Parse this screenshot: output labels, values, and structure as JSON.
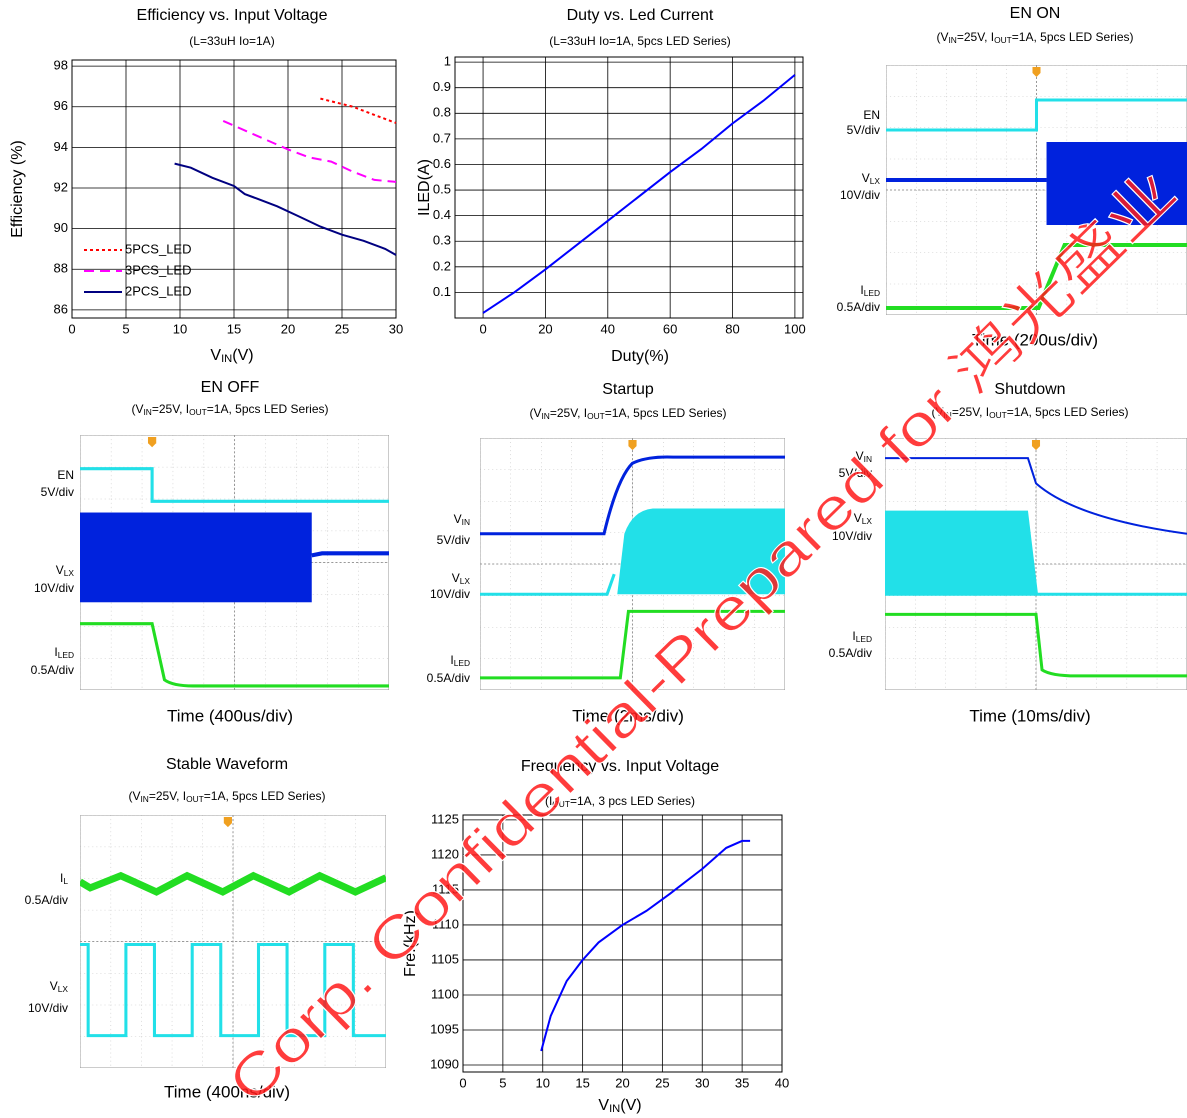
{
  "chart_data": [
    {
      "type": "line",
      "title": "Efficiency vs. Input Voltage",
      "subtitle": [
        "(L=33uH Io=1A)"
      ],
      "xlabel": [
        "V",
        "IN",
        "(V)"
      ],
      "ylabel": "Efficiency (%)",
      "xlim": [
        0,
        30
      ],
      "ylim": [
        85.6,
        98.3
      ],
      "xticks": [
        0,
        5,
        10,
        15,
        20,
        25,
        30
      ],
      "yticks": [
        86,
        88,
        90,
        92,
        94,
        96,
        98
      ],
      "grid": true,
      "legend": "lower left",
      "series": [
        {
          "name": "5PCS_LED",
          "color": "#ff0000",
          "linestyle": "dotted",
          "x": [
            23,
            26,
            28,
            30
          ],
          "values": [
            96.4,
            96.0,
            95.6,
            95.2
          ]
        },
        {
          "name": "3PCS_LED",
          "color": "#ff00ff",
          "linestyle": "dashed",
          "x": [
            14,
            17,
            20,
            22,
            24,
            26,
            28,
            30
          ],
          "values": [
            95.3,
            94.6,
            93.9,
            93.5,
            93.3,
            92.8,
            92.4,
            92.3
          ]
        },
        {
          "name": "2PCS_LED",
          "color": "#000080",
          "linestyle": "solid",
          "x": [
            9.5,
            11,
            13,
            15,
            16,
            17,
            19,
            21,
            23,
            25,
            27,
            29,
            30
          ],
          "values": [
            93.2,
            93.0,
            92.5,
            92.1,
            91.7,
            91.5,
            91.1,
            90.6,
            90.1,
            89.7,
            89.4,
            89.0,
            88.7
          ]
        }
      ]
    },
    {
      "type": "line",
      "title": "Duty vs. Led Current",
      "subtitle": [
        "(L=33uH Io=1A, 5pcs LED Series)"
      ],
      "xlabel": [
        "Duty(%)"
      ],
      "ylabel": "ILED(A)",
      "xlim": [
        -9,
        102.6
      ],
      "ylim": [
        0,
        1.02
      ],
      "xticks": [
        0,
        20,
        40,
        60,
        80,
        100
      ],
      "yticks": [
        0.1,
        0.2,
        0.3,
        0.4,
        0.5,
        0.6,
        0.7,
        0.8,
        0.9,
        1
      ],
      "grid": true,
      "series": [
        {
          "name": null,
          "color": "#0000ff",
          "linestyle": "solid",
          "x": [
            0,
            10,
            20,
            40,
            60,
            70,
            80,
            90,
            100
          ],
          "values": [
            0.02,
            0.1,
            0.19,
            0.38,
            0.57,
            0.66,
            0.76,
            0.85,
            0.95
          ]
        }
      ]
    },
    {
      "type": "scope",
      "title": "EN ON",
      "subtitle": [
        "(V",
        "IN",
        "=25V, I",
        "OUT",
        "=1A, 5pcs LED Series)"
      ],
      "xlabel": "Time (200us/div)",
      "channels": [
        {
          "name": [
            "EN"
          ],
          "scale": "5V/div"
        },
        {
          "name": [
            "V",
            "LX"
          ],
          "scale": "10V/div"
        },
        {
          "name": [
            "I",
            "LED"
          ],
          "scale": "0.5A/div"
        }
      ]
    },
    {
      "type": "scope",
      "title": "EN OFF",
      "subtitle": [
        "(V",
        "IN",
        "=25V, I",
        "OUT",
        "=1A, 5pcs LED Series)"
      ],
      "xlabel": "Time (400us/div)",
      "channels": [
        {
          "name": [
            "EN"
          ],
          "scale": "5V/div"
        },
        {
          "name": [
            "V",
            "LX"
          ],
          "scale": "10V/div"
        },
        {
          "name": [
            "I",
            "LED"
          ],
          "scale": "0.5A/div"
        }
      ]
    },
    {
      "type": "scope",
      "title": "Startup",
      "subtitle": [
        "(V",
        "IN",
        "=25V, I",
        "OUT",
        "=1A, 5pcs LED Series)"
      ],
      "xlabel": "Time (2ms/div)",
      "channels": [
        {
          "name": [
            "V",
            "IN"
          ],
          "scale": "5V/div"
        },
        {
          "name": [
            "V",
            "LX"
          ],
          "scale": "10V/div"
        },
        {
          "name": [
            "I",
            "LED"
          ],
          "scale": "0.5A/div"
        }
      ]
    },
    {
      "type": "scope",
      "title": "Shutdown",
      "subtitle": [
        "(V",
        "IN",
        "=25V, I",
        "OUT",
        "=1A, 5pcs LED Series)"
      ],
      "xlabel": "Time (10ms/div)",
      "channels": [
        {
          "name": [
            "V",
            "IN"
          ],
          "scale": "5V/div"
        },
        {
          "name": [
            "V",
            "LX"
          ],
          "scale": "10V/div"
        },
        {
          "name": [
            "I",
            "LED"
          ],
          "scale": "0.5A/div"
        }
      ]
    },
    {
      "type": "scope",
      "title": "Stable Waveform",
      "subtitle": [
        "(V",
        "IN",
        "=25V, I",
        "OUT",
        "=1A, 5pcs LED Series)"
      ],
      "xlabel": "Time (400ns/div)",
      "channels": [
        {
          "name": [
            "I",
            "L"
          ],
          "scale": "0.5A/div"
        },
        {
          "name": [
            "V",
            "LX"
          ],
          "scale": "10V/div"
        }
      ]
    },
    {
      "type": "line",
      "title": "Frequency vs. Input Voltage",
      "subtitle": [
        "(I",
        "OUT",
        "=1A, 3 pcs LED Series)"
      ],
      "xlabel": [
        "V",
        "IN",
        "(V)"
      ],
      "ylabel": "Fre.(kHz)",
      "xlim": [
        0,
        40
      ],
      "ylim": [
        1089,
        1125.7
      ],
      "xticks": [
        0,
        5,
        10,
        15,
        20,
        25,
        30,
        35,
        40
      ],
      "yticks": [
        1090,
        1095,
        1100,
        1105,
        1110,
        1115,
        1120,
        1125
      ],
      "grid": true,
      "series": [
        {
          "name": null,
          "color": "#0000ff",
          "linestyle": "solid",
          "x": [
            9.8,
            11,
            13,
            15,
            17,
            20,
            23,
            26,
            30,
            33,
            35,
            36
          ],
          "values": [
            1092,
            1097,
            1102,
            1105,
            1107.5,
            1110,
            1112,
            1114.5,
            1118,
            1121,
            1122,
            1122
          ]
        }
      ]
    }
  ],
  "watermark": "Corp. Confidential-Prepared for 鸿光盛业"
}
